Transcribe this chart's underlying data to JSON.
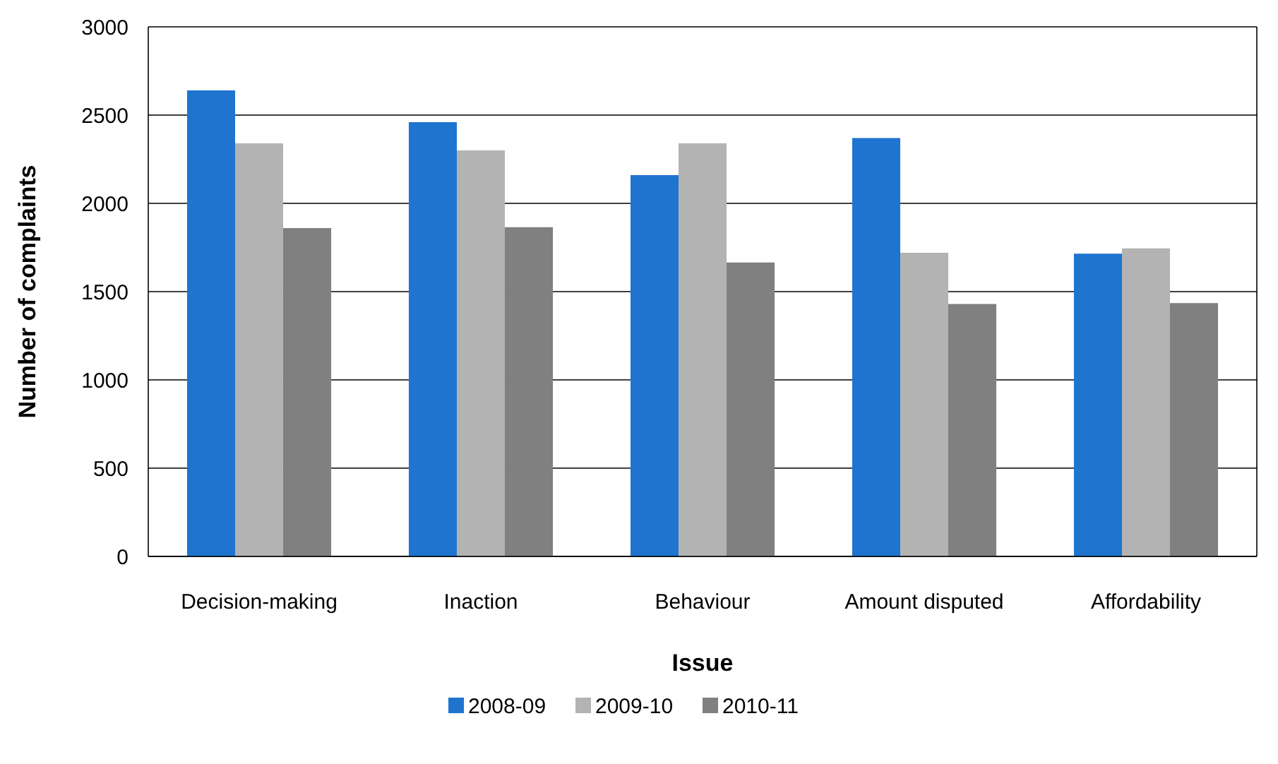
{
  "chart_data": {
    "type": "bar",
    "xlabel": "Issue",
    "ylabel": "Number of complaints",
    "categories": [
      "Decision-making",
      "Inaction",
      "Behaviour",
      "Amount disputed",
      "Affordability"
    ],
    "series": [
      {
        "name": "2008-09",
        "color": "#1f74d0",
        "values": [
          2640,
          2460,
          2160,
          2370,
          1715
        ]
      },
      {
        "name": "2009-10",
        "color": "#b3b3b3",
        "values": [
          2340,
          2300,
          2340,
          1720,
          1745
        ]
      },
      {
        "name": "2010-11",
        "color": "#808080",
        "values": [
          1860,
          1865,
          1665,
          1430,
          1435
        ]
      }
    ],
    "ylim": [
      0,
      3000
    ],
    "yticks": [
      0,
      500,
      1000,
      1500,
      2000,
      2500,
      3000
    ],
    "grid": "y",
    "legend": "bottom"
  }
}
